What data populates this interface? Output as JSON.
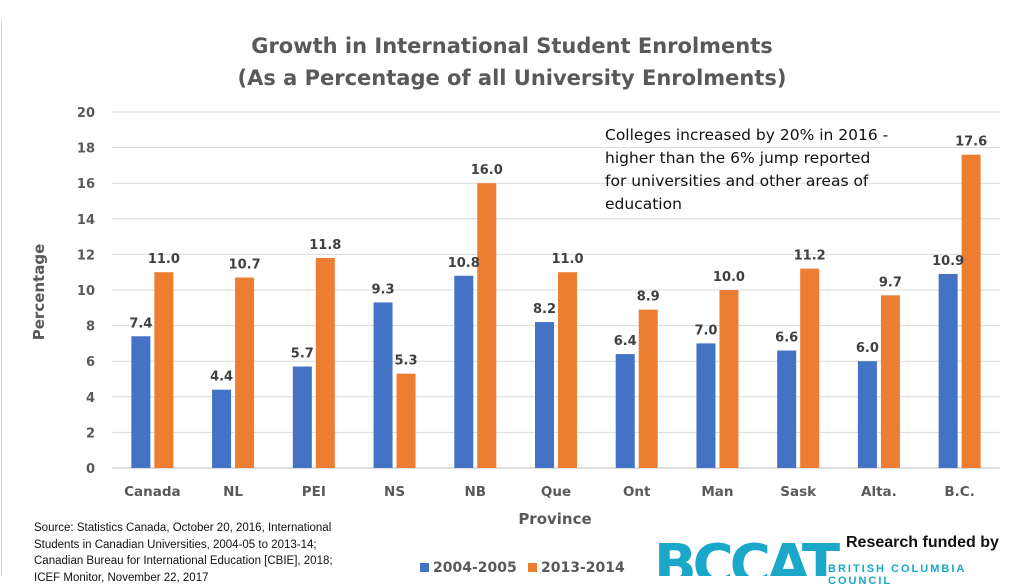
{
  "chart_data": {
    "type": "bar",
    "title": "Growth in International Student Enrolments",
    "subtitle": "(As a Percentage of all University Enrolments)",
    "xlabel": "Province",
    "ylabel": "Percentage",
    "ylim": [
      0,
      20
    ],
    "yticks": [
      0,
      2,
      4,
      6,
      8,
      10,
      12,
      14,
      16,
      18,
      20
    ],
    "grid": true,
    "legend_position": "bottom",
    "categories": [
      "Canada",
      "NL",
      "PEI",
      "NS",
      "NB",
      "Que",
      "Ont",
      "Man",
      "Sask",
      "Alta.",
      "B.C."
    ],
    "series": [
      {
        "name": "2004-2005",
        "color": "#4472c4",
        "values": [
          7.4,
          4.4,
          5.7,
          9.3,
          10.8,
          8.2,
          6.4,
          7.0,
          6.6,
          6.0,
          10.9
        ],
        "labels": [
          "7.4",
          "4.4",
          "5.7",
          "9.3",
          "10.8",
          "8.2",
          "6.4",
          "7.0",
          "6.6",
          "6.0",
          "10.9"
        ]
      },
      {
        "name": "2013-2014",
        "color": "#ed7d31",
        "values": [
          11.0,
          10.7,
          11.8,
          5.3,
          16.0,
          11.0,
          8.9,
          10.0,
          11.2,
          9.7,
          17.6
        ],
        "labels": [
          "11.0",
          "10.7",
          "11.8",
          "5.3",
          "16.0",
          "11.0",
          "8.9",
          "10.0",
          "11.2",
          "9.7",
          "17.6"
        ]
      }
    ],
    "annotation": "Colleges increased by 20% in 2016 - higher than the 6% jump reported for universities and other areas of education"
  },
  "source_note": "Source: Statistics Canada, October 20, 2016, International Students in Canadian Universities, 2004-05 to 2013-14; Canadian Bureau for International Education [CBIE], 2018; ICEF Monitor, November 22, 2017",
  "funding": {
    "label": "Research funded by",
    "logo_text": "BCCAT",
    "logo_subtext": "BRITISH COLUMBIA COUNCIL"
  }
}
